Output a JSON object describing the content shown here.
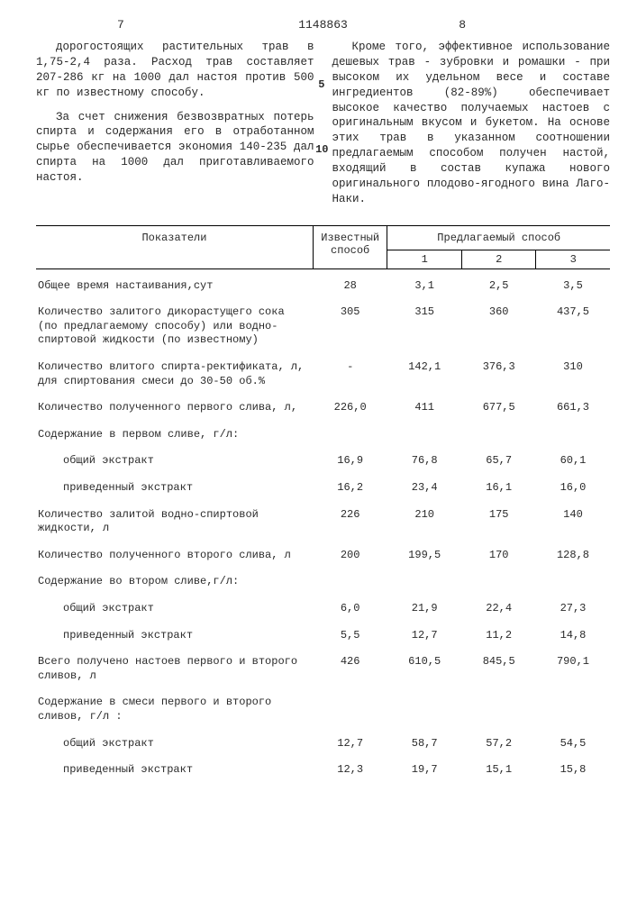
{
  "header": {
    "col_left": "7",
    "doc_number": "1148863",
    "col_right": "8"
  },
  "text": {
    "left_p1": "дорогостоящих растительных трав в 1,75-2,4 раза. Расход трав составляет 207-286 кг на 1000 дал настоя против 500 кг по известному способу.",
    "left_p2": "За счет снижения безвозвратных потерь спирта и содержания его в отработанном сырье обеспечивается экономия 140-235 дал спирта на 1000 дал приготавливаемого настоя.",
    "right_p1": "Кроме того, эффективное использование дешевых трав - зубровки и ромашки - при высоком их удельном весе и составе ингредиентов (82-89%) обеспечивает высокое качество получаемых настоев с оригинальным вкусом и букетом. На основе этих трав в указанном соотношении предлагаемым способом получен настой, входящий в состав купажа нового оригинального плодово-ягодного вина Лаго-Наки."
  },
  "table": {
    "headers": {
      "param": "Показатели",
      "known": "Известный способ",
      "proposed": "Предлагаемый способ",
      "c1": "1",
      "c2": "2",
      "c3": "3"
    },
    "rows": [
      {
        "label": "Общее время настаивания,сут",
        "v": [
          "28",
          "3,1",
          "2,5",
          "3,5"
        ]
      },
      {
        "label": "Количество залитого дикорастущего сока (по предлагаемому способу) или водно-спиртовой жидкости (по известному)",
        "v": [
          "305",
          "315",
          "360",
          "437,5"
        ]
      },
      {
        "label": "Количество влитого спирта-ректификата, л, для спиртования смеси до 30-50 об.%",
        "v": [
          "-",
          "142,1",
          "376,3",
          "310"
        ]
      },
      {
        "label": "Количество полученного первого слива, л,",
        "v": [
          "226,0",
          "411",
          "677,5",
          "661,3"
        ]
      },
      {
        "label": "Содержание в первом сливе, г/л:",
        "v": [
          "",
          "",
          "",
          ""
        ]
      },
      {
        "label": "общий экстракт",
        "indent": true,
        "v": [
          "16,9",
          "76,8",
          "65,7",
          "60,1"
        ]
      },
      {
        "label": "приведенный экстракт",
        "indent": true,
        "v": [
          "16,2",
          "23,4",
          "16,1",
          "16,0"
        ]
      },
      {
        "label": "Количество залитой водно-спиртовой жидкости, л",
        "v": [
          "226",
          "210",
          "175",
          "140"
        ]
      },
      {
        "label": "Количество полученного второго слива, л",
        "v": [
          "200",
          "199,5",
          "170",
          "128,8"
        ]
      },
      {
        "label": "Содержание во втором сливе,г/л:",
        "v": [
          "",
          "",
          "",
          ""
        ]
      },
      {
        "label": "общий экстракт",
        "indent": true,
        "v": [
          "6,0",
          "21,9",
          "22,4",
          "27,3"
        ]
      },
      {
        "label": "приведенный экстракт",
        "indent": true,
        "v": [
          "5,5",
          "12,7",
          "11,2",
          "14,8"
        ]
      },
      {
        "label": "Всего получено настоев первого и второго сливов, л",
        "v": [
          "426",
          "610,5",
          "845,5",
          "790,1"
        ]
      },
      {
        "label": "Содержание в смеси первого и второго сливов, г/л :",
        "v": [
          "",
          "",
          "",
          ""
        ]
      },
      {
        "label": "общий экстракт",
        "indent": true,
        "v": [
          "12,7",
          "58,7",
          "57,2",
          "54,5"
        ]
      },
      {
        "label": "приведенный экстракт",
        "indent": true,
        "v": [
          "12,3",
          "19,7",
          "15,1",
          "15,8"
        ]
      }
    ]
  }
}
